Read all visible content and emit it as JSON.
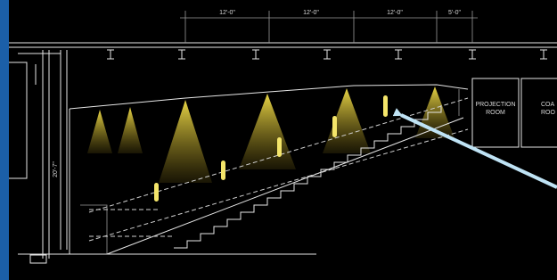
{
  "drawing": {
    "dimensions": [
      "12'-0\"",
      "12'-0\"",
      "12'-0\"",
      "5'-0\""
    ],
    "height_dimension": "20'-7\"",
    "rooms": [
      {
        "lines": [
          "PROJECTION",
          "ROOM"
        ]
      },
      {
        "lines": [
          "COA",
          "ROO"
        ]
      }
    ]
  }
}
